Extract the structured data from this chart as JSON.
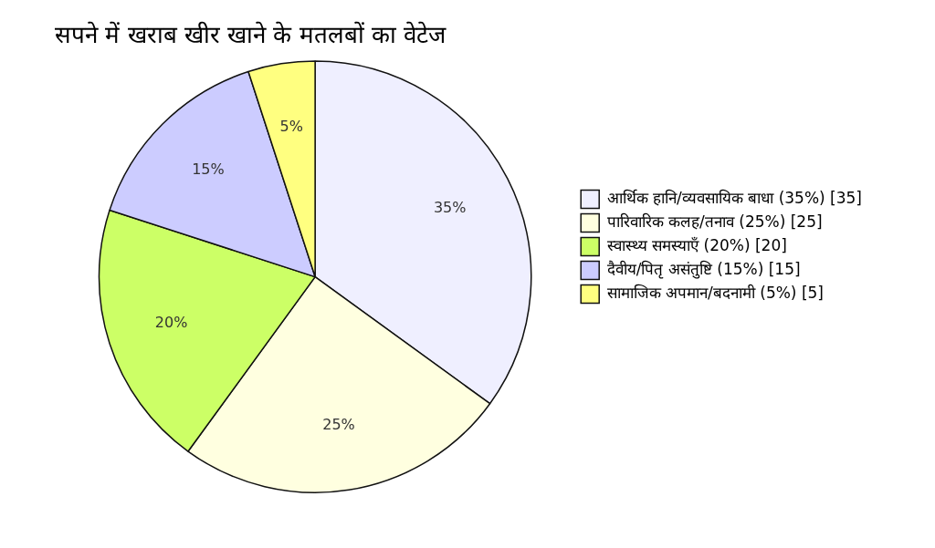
{
  "chart_data": {
    "type": "pie",
    "title": "सपने में खराब खीर खाने के मतलबों का वेटेज",
    "categories": [
      "आर्थिक हानि/व्यवसायिक बाधा (35%) [35]",
      "पारिवारिक कलह/तनाव (25%) [25]",
      "स्वास्थ्य समस्याएँ (20%) [20]",
      "दैवीय/पितृ असंतुष्टि (15%) [15]",
      "सामाजिक अपमान/बदनामी (5%) [5]"
    ],
    "values": [
      35,
      25,
      20,
      15,
      5
    ],
    "colors": [
      "#efefff",
      "#ffffe0",
      "#ccff66",
      "#ccccff",
      "#ffff80"
    ],
    "value_labels": [
      "35%",
      "25%",
      "20%",
      "15%",
      "5%"
    ],
    "legend": "right"
  }
}
